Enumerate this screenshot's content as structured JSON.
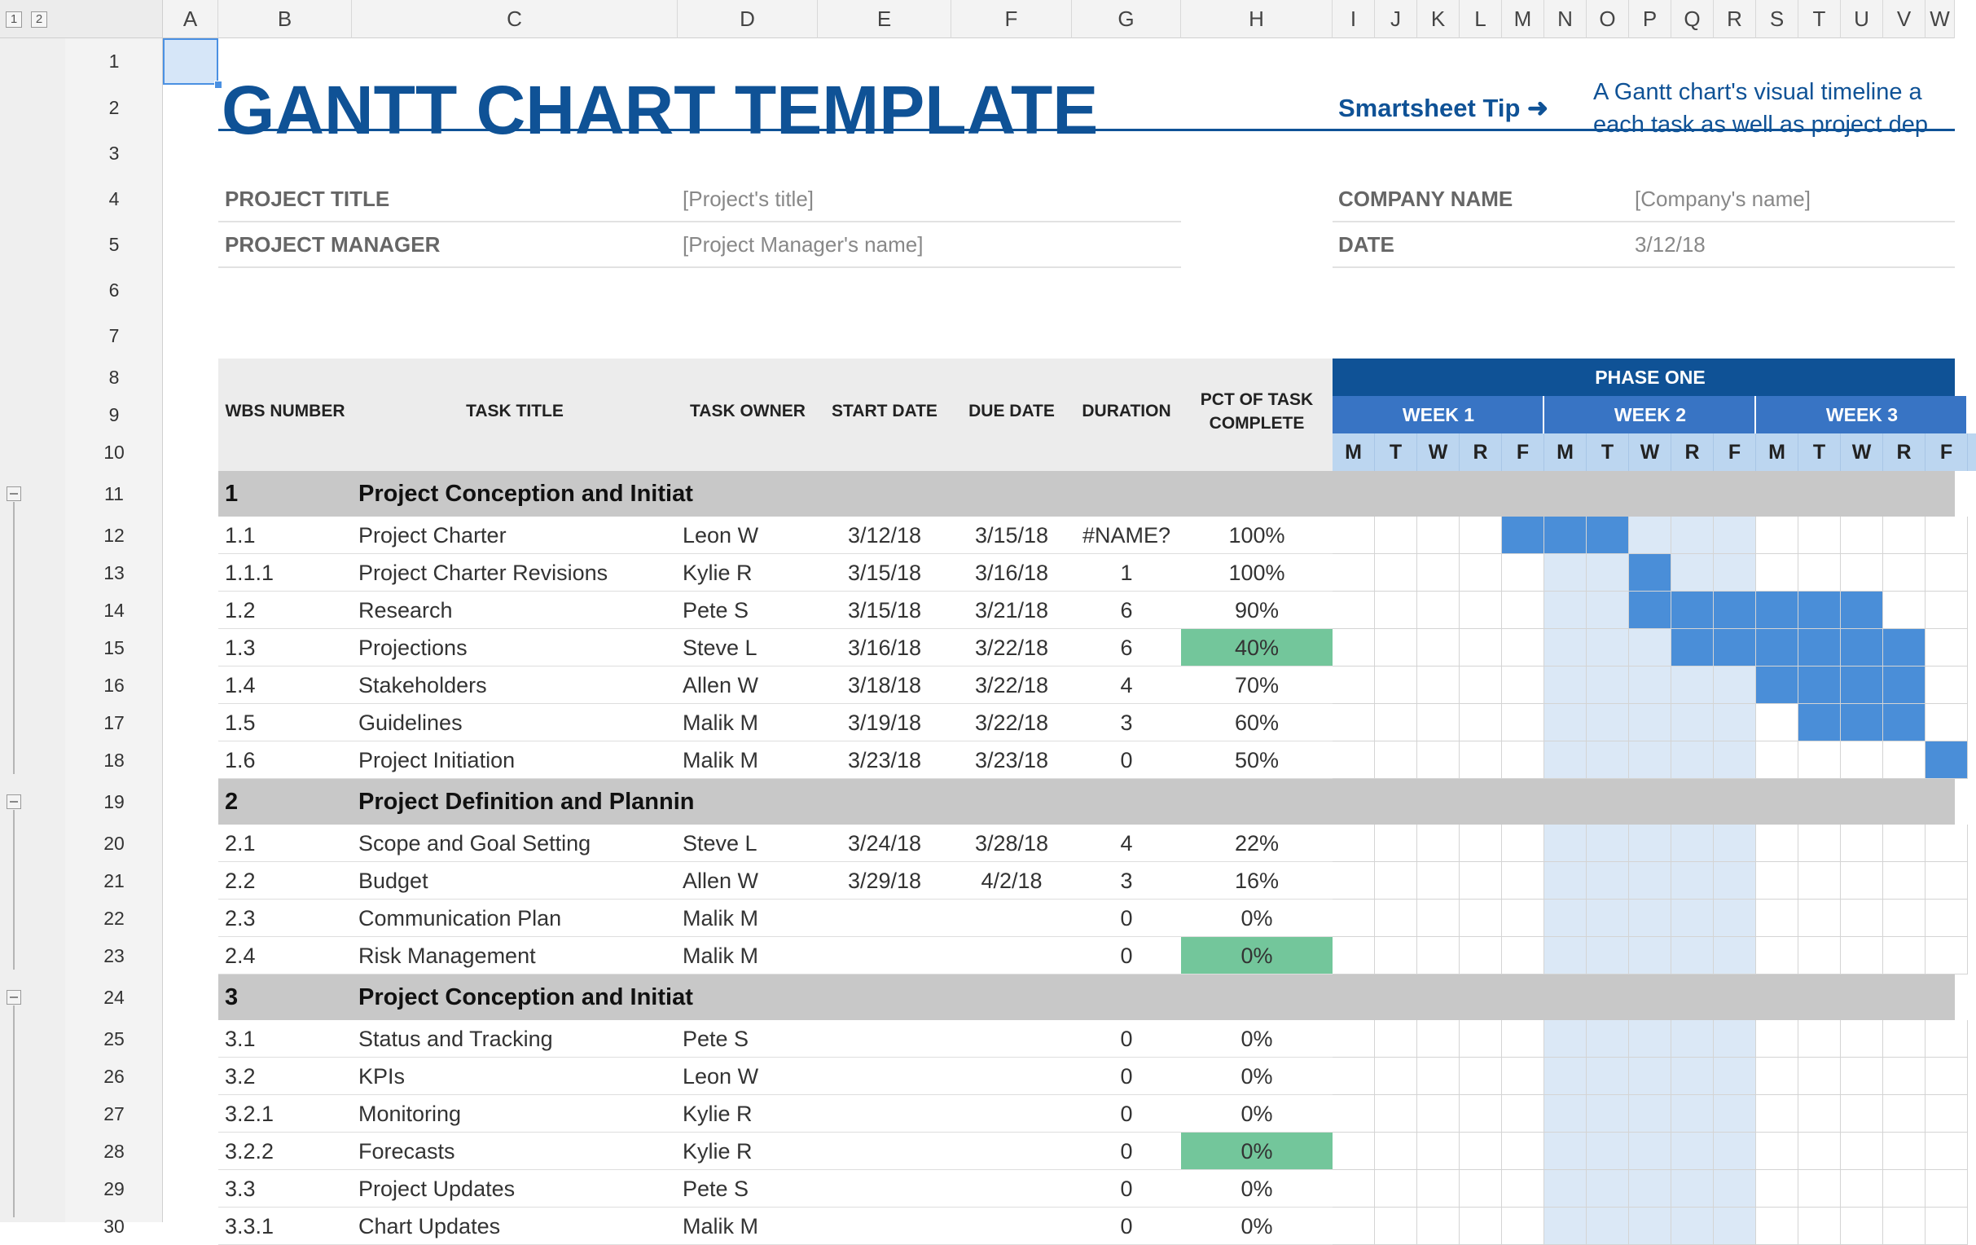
{
  "columns": [
    "A",
    "B",
    "C",
    "D",
    "E",
    "F",
    "G",
    "H",
    "I",
    "J",
    "K",
    "L",
    "M",
    "N",
    "O",
    "P",
    "Q",
    "R",
    "S",
    "T",
    "U",
    "V",
    "W"
  ],
  "outline_levels": [
    "1",
    "2"
  ],
  "title": "GANTT CHART TEMPLATE",
  "tip": {
    "label": "Smartsheet Tip ➜",
    "line1": "A Gantt chart's visual timeline a",
    "line2": "each task as well as project dep"
  },
  "info": {
    "project_title_label": "PROJECT TITLE",
    "project_title_value": "[Project's title]",
    "project_manager_label": "PROJECT MANAGER",
    "project_manager_value": "[Project Manager's name]",
    "company_label": "COMPANY NAME",
    "company_value": "[Company's name]",
    "date_label": "DATE",
    "date_value": "3/12/18"
  },
  "headers": {
    "wbs": "WBS NUMBER",
    "task": "TASK TITLE",
    "owner": "TASK OWNER",
    "start": "START DATE",
    "due": "DUE DATE",
    "duration": "DURATION",
    "pct": "PCT OF TASK COMPLETE"
  },
  "phase": "PHASE ONE",
  "weeks": [
    "WEEK 1",
    "WEEK 2",
    "WEEK 3"
  ],
  "days": [
    "M",
    "T",
    "W",
    "R",
    "F",
    "M",
    "T",
    "W",
    "R",
    "F",
    "M",
    "T",
    "W",
    "R",
    "F"
  ],
  "colors": {
    "phase_bar": "#0f5296",
    "week_bar": "#3874c4",
    "day_bar": "#bcd6f0",
    "task_bar": "#4a8ed8",
    "week2_shade": "#dbe8f6",
    "section_row": "#c8c8c8",
    "pct_highlight": "#73c69b",
    "title": "#0f5296"
  },
  "rows": [
    {
      "row": "11",
      "type": "section",
      "wbs": "1",
      "task": "Project Conception and Initiat"
    },
    {
      "row": "12",
      "type": "task",
      "wbs": "1.1",
      "task": "Project Charter",
      "owner": "Leon W",
      "start": "3/12/18",
      "due": "3/15/18",
      "duration": "#NAME?",
      "pct": "100%",
      "highlight": false,
      "bar": [
        4,
        6
      ]
    },
    {
      "row": "13",
      "type": "task",
      "wbs": "1.1.1",
      "task": "Project Charter Revisions",
      "owner": "Kylie R",
      "start": "3/15/18",
      "due": "3/16/18",
      "duration": "1",
      "pct": "100%",
      "highlight": false,
      "bar": [
        7,
        7
      ]
    },
    {
      "row": "14",
      "type": "task",
      "wbs": "1.2",
      "task": "Research",
      "owner": "Pete S",
      "start": "3/15/18",
      "due": "3/21/18",
      "duration": "6",
      "pct": "90%",
      "highlight": false,
      "bar": [
        7,
        12
      ]
    },
    {
      "row": "15",
      "type": "task",
      "wbs": "1.3",
      "task": "Projections",
      "owner": "Steve L",
      "start": "3/16/18",
      "due": "3/22/18",
      "duration": "6",
      "pct": "40%",
      "highlight": true,
      "bar": [
        8,
        13
      ]
    },
    {
      "row": "16",
      "type": "task",
      "wbs": "1.4",
      "task": "Stakeholders",
      "owner": "Allen W",
      "start": "3/18/18",
      "due": "3/22/18",
      "duration": "4",
      "pct": "70%",
      "highlight": false,
      "bar": [
        10,
        13
      ]
    },
    {
      "row": "17",
      "type": "task",
      "wbs": "1.5",
      "task": "Guidelines",
      "owner": "Malik M",
      "start": "3/19/18",
      "due": "3/22/18",
      "duration": "3",
      "pct": "60%",
      "highlight": false,
      "bar": [
        11,
        13
      ]
    },
    {
      "row": "18",
      "type": "task",
      "wbs": "1.6",
      "task": "Project Initiation",
      "owner": "Malik M",
      "start": "3/23/18",
      "due": "3/23/18",
      "duration": "0",
      "pct": "50%",
      "highlight": false,
      "bar": [
        14,
        14
      ]
    },
    {
      "row": "19",
      "type": "section",
      "wbs": "2",
      "task": "Project Definition and Plannin"
    },
    {
      "row": "20",
      "type": "task",
      "wbs": "2.1",
      "task": "Scope and Goal Setting",
      "owner": "Steve L",
      "start": "3/24/18",
      "due": "3/28/18",
      "duration": "4",
      "pct": "22%",
      "highlight": false,
      "bar": null
    },
    {
      "row": "21",
      "type": "task",
      "wbs": "2.2",
      "task": "Budget",
      "owner": "Allen W",
      "start": "3/29/18",
      "due": "4/2/18",
      "duration": "3",
      "pct": "16%",
      "highlight": false,
      "bar": null
    },
    {
      "row": "22",
      "type": "task",
      "wbs": "2.3",
      "task": "Communication Plan",
      "owner": "Malik M",
      "start": "",
      "due": "",
      "duration": "0",
      "pct": "0%",
      "highlight": false,
      "bar": null
    },
    {
      "row": "23",
      "type": "task",
      "wbs": "2.4",
      "task": "Risk Management",
      "owner": "Malik M",
      "start": "",
      "due": "",
      "duration": "0",
      "pct": "0%",
      "highlight": true,
      "bar": null
    },
    {
      "row": "24",
      "type": "section",
      "wbs": "3",
      "task": "Project Conception and Initiat"
    },
    {
      "row": "25",
      "type": "task",
      "wbs": "3.1",
      "task": "Status and Tracking",
      "owner": "Pete S",
      "start": "",
      "due": "",
      "duration": "0",
      "pct": "0%",
      "highlight": false,
      "bar": null
    },
    {
      "row": "26",
      "type": "task",
      "wbs": "3.2",
      "task": "KPIs",
      "owner": "Leon W",
      "start": "",
      "due": "",
      "duration": "0",
      "pct": "0%",
      "highlight": false,
      "bar": null
    },
    {
      "row": "27",
      "type": "task",
      "wbs": "3.2.1",
      "task": "Monitoring",
      "owner": "Kylie R",
      "start": "",
      "due": "",
      "duration": "0",
      "pct": "0%",
      "highlight": false,
      "bar": null
    },
    {
      "row": "28",
      "type": "task",
      "wbs": "3.2.2",
      "task": "Forecasts",
      "owner": "Kylie R",
      "start": "",
      "due": "",
      "duration": "0",
      "pct": "0%",
      "highlight": true,
      "bar": null
    },
    {
      "row": "29",
      "type": "task",
      "wbs": "3.3",
      "task": "Project Updates",
      "owner": "Pete S",
      "start": "",
      "due": "",
      "duration": "0",
      "pct": "0%",
      "highlight": false,
      "bar": null
    },
    {
      "row": "30",
      "type": "task",
      "wbs": "3.3.1",
      "task": "Chart Updates",
      "owner": "Malik M",
      "start": "",
      "due": "",
      "duration": "0",
      "pct": "0%",
      "highlight": false,
      "bar": null
    }
  ]
}
